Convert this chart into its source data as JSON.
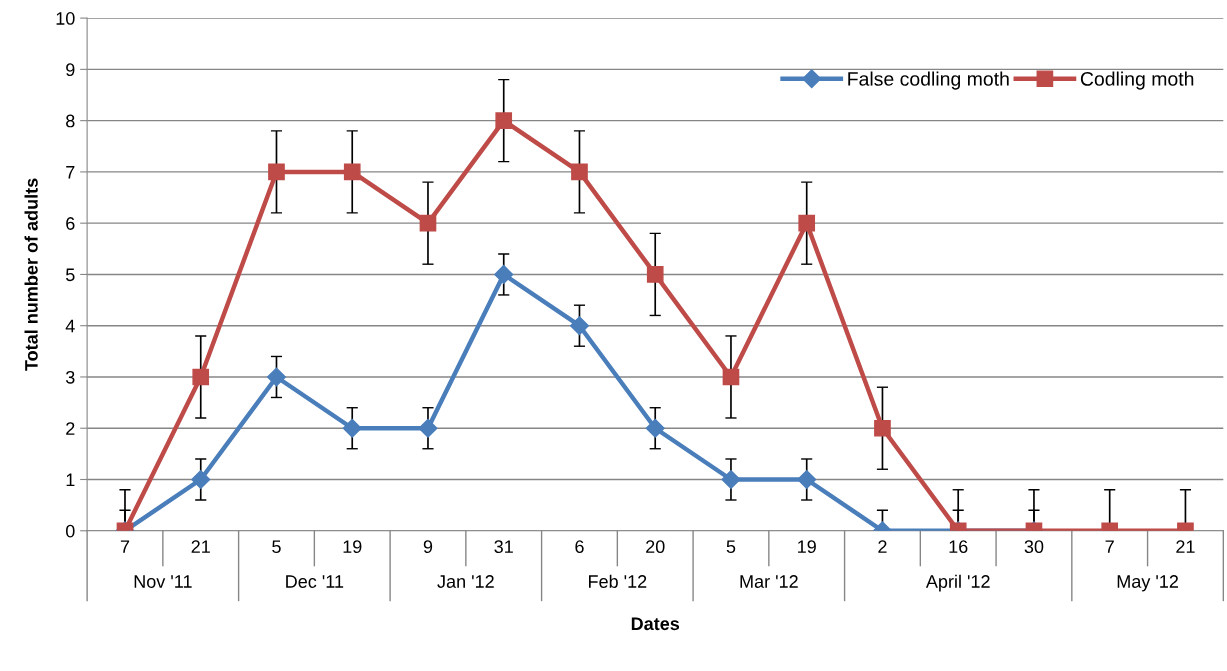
{
  "chart_data": {
    "type": "line",
    "xlabel": "Dates",
    "ylabel": "Total number of adults",
    "categories": [
      "7",
      "21",
      "5",
      "19",
      "9",
      "31",
      "6",
      "20",
      "5",
      "19",
      "2",
      "16",
      "30",
      "7",
      "21"
    ],
    "annotations": [
      "Nov '11",
      "Dec '11",
      "Jan '12",
      "Feb '12",
      "Mar '12",
      "April '12",
      "May '12"
    ],
    "series": [
      {
        "name": "False codling moth",
        "color": "#4a7ebb",
        "marker": "diamond",
        "values": [
          0,
          1,
          3,
          2,
          2,
          5,
          4,
          2,
          1,
          1,
          0,
          0,
          0,
          null,
          null
        ],
        "errors": [
          [
            0,
            0.4
          ],
          0.4,
          0.4,
          0.4,
          0.4,
          0.4,
          0.4,
          0.4,
          0.4,
          0.4,
          [
            0,
            0.4
          ],
          [
            0,
            0.4
          ],
          [
            0,
            0.4
          ],
          null,
          null
        ]
      },
      {
        "name": "Codling moth",
        "color": "#be4b48",
        "marker": "square",
        "values": [
          0,
          3,
          7,
          7,
          6,
          8,
          7,
          5,
          3,
          6,
          2,
          0,
          0,
          0,
          0
        ],
        "errors": [
          [
            0,
            0.8
          ],
          0.8,
          0.8,
          0.8,
          0.8,
          0.8,
          0.8,
          0.8,
          0.8,
          0.8,
          0.8,
          [
            0,
            0.8
          ],
          [
            0,
            0.8
          ],
          [
            0,
            0.8
          ],
          [
            0,
            0.8
          ]
        ]
      }
    ],
    "ylim": [
      0,
      10
    ],
    "yticks": [
      0,
      1,
      2,
      3,
      4,
      5,
      6,
      7,
      8,
      9,
      10
    ],
    "grid": "y",
    "legend": "top right",
    "line_style": "solid"
  }
}
